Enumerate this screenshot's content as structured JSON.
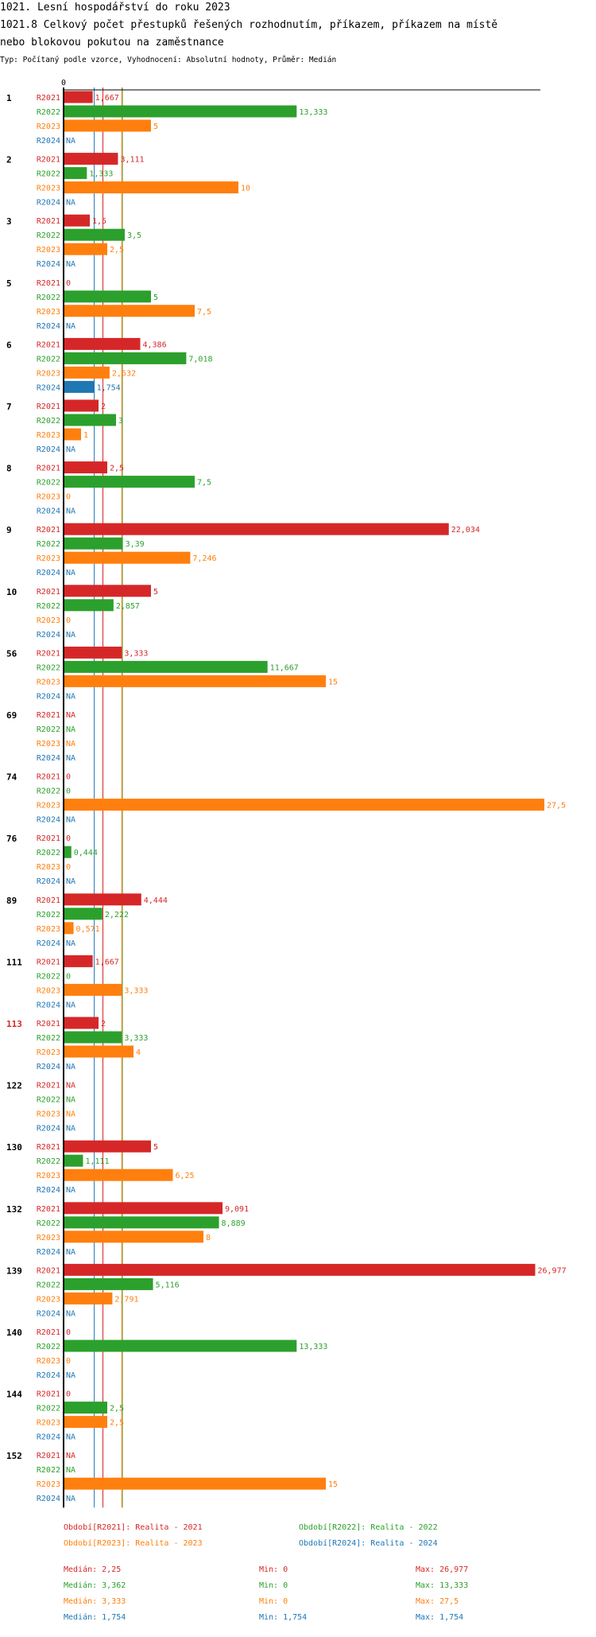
{
  "title_line1": "1021. Lesní hospodářství do roku 2023",
  "title_line2": "1021.8 Celkový počet přestupků řešených rozhodnutím, příkazem, příkazem na místě",
  "title_line3": "nebo blokovou pokutou na zaměstnance",
  "subtitle": "Typ: Počítaný podle vzorce, Vyhodnocení: Absolutní hodnoty, Průměr: Medián",
  "chart_data": {
    "type": "bar",
    "orientation": "horizontal",
    "axis_zero_label": "0",
    "xlim": [
      0,
      27.5
    ],
    "na_label": "NA",
    "highlight_category": "113",
    "highlight_color": "#d62728",
    "series_colors": {
      "R2021": "#d62728",
      "R2022": "#2ca02c",
      "R2023": "#ff7f0e",
      "R2024": "#1f77b4"
    },
    "series": [
      {
        "name": "R2021",
        "color": "#d62728"
      },
      {
        "name": "R2022",
        "color": "#2ca02c"
      },
      {
        "name": "R2023",
        "color": "#ff7f0e"
      },
      {
        "name": "R2024",
        "color": "#1f77b4"
      }
    ],
    "categories": [
      {
        "label": "1",
        "values": [
          {
            "v": 1.667,
            "t": "1,667"
          },
          {
            "v": 13.333,
            "t": "13,333"
          },
          {
            "v": 5,
            "t": "5"
          },
          {
            "v": null,
            "t": "NA"
          }
        ]
      },
      {
        "label": "2",
        "values": [
          {
            "v": 3.111,
            "t": "3,111"
          },
          {
            "v": 1.333,
            "t": "1,333"
          },
          {
            "v": 10,
            "t": "10"
          },
          {
            "v": null,
            "t": "NA"
          }
        ]
      },
      {
        "label": "3",
        "values": [
          {
            "v": 1.5,
            "t": "1,5"
          },
          {
            "v": 3.5,
            "t": "3,5"
          },
          {
            "v": 2.5,
            "t": "2,5"
          },
          {
            "v": null,
            "t": "NA"
          }
        ]
      },
      {
        "label": "5",
        "values": [
          {
            "v": 0,
            "t": "0"
          },
          {
            "v": 5,
            "t": "5"
          },
          {
            "v": 7.5,
            "t": "7,5"
          },
          {
            "v": null,
            "t": "NA"
          }
        ]
      },
      {
        "label": "6",
        "values": [
          {
            "v": 4.386,
            "t": "4,386"
          },
          {
            "v": 7.018,
            "t": "7,018"
          },
          {
            "v": 2.632,
            "t": "2,632"
          },
          {
            "v": 1.754,
            "t": "1,754"
          }
        ]
      },
      {
        "label": "7",
        "values": [
          {
            "v": 2,
            "t": "2"
          },
          {
            "v": 3,
            "t": "3"
          },
          {
            "v": 1,
            "t": "1"
          },
          {
            "v": null,
            "t": "NA"
          }
        ]
      },
      {
        "label": "8",
        "values": [
          {
            "v": 2.5,
            "t": "2,5"
          },
          {
            "v": 7.5,
            "t": "7,5"
          },
          {
            "v": 0,
            "t": "0"
          },
          {
            "v": null,
            "t": "NA"
          }
        ]
      },
      {
        "label": "9",
        "values": [
          {
            "v": 22.034,
            "t": "22,034"
          },
          {
            "v": 3.39,
            "t": "3,39"
          },
          {
            "v": 7.246,
            "t": "7,246"
          },
          {
            "v": null,
            "t": "NA"
          }
        ]
      },
      {
        "label": "10",
        "values": [
          {
            "v": 5,
            "t": "5"
          },
          {
            "v": 2.857,
            "t": "2,857"
          },
          {
            "v": 0,
            "t": "0"
          },
          {
            "v": null,
            "t": "NA"
          }
        ]
      },
      {
        "label": "56",
        "values": [
          {
            "v": 3.333,
            "t": "3,333"
          },
          {
            "v": 11.667,
            "t": "11,667"
          },
          {
            "v": 15,
            "t": "15"
          },
          {
            "v": null,
            "t": "NA"
          }
        ]
      },
      {
        "label": "69",
        "values": [
          {
            "v": null,
            "t": "NA"
          },
          {
            "v": null,
            "t": "NA"
          },
          {
            "v": null,
            "t": "NA"
          },
          {
            "v": null,
            "t": "NA"
          }
        ]
      },
      {
        "label": "74",
        "values": [
          {
            "v": 0,
            "t": "0"
          },
          {
            "v": 0,
            "t": "0"
          },
          {
            "v": 27.5,
            "t": "27,5"
          },
          {
            "v": null,
            "t": "NA"
          }
        ]
      },
      {
        "label": "76",
        "values": [
          {
            "v": 0,
            "t": "0"
          },
          {
            "v": 0.444,
            "t": "0,444"
          },
          {
            "v": 0,
            "t": "0"
          },
          {
            "v": null,
            "t": "NA"
          }
        ]
      },
      {
        "label": "89",
        "values": [
          {
            "v": 4.444,
            "t": "4,444"
          },
          {
            "v": 2.222,
            "t": "2,222"
          },
          {
            "v": 0.571,
            "t": "0,571"
          },
          {
            "v": null,
            "t": "NA"
          }
        ]
      },
      {
        "label": "111",
        "values": [
          {
            "v": 1.667,
            "t": "1,667"
          },
          {
            "v": 0,
            "t": "0"
          },
          {
            "v": 3.333,
            "t": "3,333"
          },
          {
            "v": null,
            "t": "NA"
          }
        ]
      },
      {
        "label": "113",
        "values": [
          {
            "v": 2,
            "t": "2"
          },
          {
            "v": 3.333,
            "t": "3,333"
          },
          {
            "v": 4,
            "t": "4"
          },
          {
            "v": null,
            "t": "NA"
          }
        ]
      },
      {
        "label": "122",
        "values": [
          {
            "v": null,
            "t": "NA"
          },
          {
            "v": null,
            "t": "NA"
          },
          {
            "v": null,
            "t": "NA"
          },
          {
            "v": null,
            "t": "NA"
          }
        ]
      },
      {
        "label": "130",
        "values": [
          {
            "v": 5,
            "t": "5"
          },
          {
            "v": 1.111,
            "t": "1,111"
          },
          {
            "v": 6.25,
            "t": "6,25"
          },
          {
            "v": null,
            "t": "NA"
          }
        ]
      },
      {
        "label": "132",
        "values": [
          {
            "v": 9.091,
            "t": "9,091"
          },
          {
            "v": 8.889,
            "t": "8,889"
          },
          {
            "v": 8,
            "t": "8"
          },
          {
            "v": null,
            "t": "NA"
          }
        ]
      },
      {
        "label": "139",
        "values": [
          {
            "v": 26.977,
            "t": "26,977"
          },
          {
            "v": 5.116,
            "t": "5,116"
          },
          {
            "v": 2.791,
            "t": "2,791"
          },
          {
            "v": null,
            "t": "NA"
          }
        ]
      },
      {
        "label": "140",
        "values": [
          {
            "v": 0,
            "t": "0"
          },
          {
            "v": 13.333,
            "t": "13,333"
          },
          {
            "v": 0,
            "t": "0"
          },
          {
            "v": null,
            "t": "NA"
          }
        ]
      },
      {
        "label": "144",
        "values": [
          {
            "v": 0,
            "t": "0"
          },
          {
            "v": 2.5,
            "t": "2,5"
          },
          {
            "v": 2.5,
            "t": "2,5"
          },
          {
            "v": null,
            "t": "NA"
          }
        ]
      },
      {
        "label": "152",
        "values": [
          {
            "v": null,
            "t": "NA"
          },
          {
            "v": null,
            "t": "NA"
          },
          {
            "v": 15,
            "t": "15"
          },
          {
            "v": null,
            "t": "NA"
          }
        ]
      }
    ],
    "median_lines": [
      {
        "series": "R2021",
        "value": 2.25,
        "color": "#d62728"
      },
      {
        "series": "R2022",
        "value": 3.362,
        "color": "#2ca02c"
      },
      {
        "series": "R2023",
        "value": 3.333,
        "color": "#ff7f0e"
      },
      {
        "series": "R2024",
        "value": 1.754,
        "color": "#1f77b4"
      }
    ],
    "legend": [
      {
        "text": "Období[R2021]: Realita - 2021",
        "color": "#d62728"
      },
      {
        "text": "Období[R2022]: Realita - 2022",
        "color": "#2ca02c"
      },
      {
        "text": "Období[R2023]: Realita - 2023",
        "color": "#ff7f0e"
      },
      {
        "text": "Období[R2024]: Realita - 2024",
        "color": "#1f77b4"
      }
    ],
    "stats": [
      {
        "median": "Medián: 2,25",
        "min": "Min: 0",
        "max": "Max: 26,977",
        "color": "#d62728"
      },
      {
        "median": "Medián: 3,362",
        "min": "Min: 0",
        "max": "Max: 13,333",
        "color": "#2ca02c"
      },
      {
        "median": "Medián: 3,333",
        "min": "Min: 0",
        "max": "Max: 27,5",
        "color": "#ff7f0e"
      },
      {
        "median": "Medián: 1,754",
        "min": "Min: 1,754",
        "max": "Max: 1,754",
        "color": "#1f77b4"
      }
    ]
  }
}
